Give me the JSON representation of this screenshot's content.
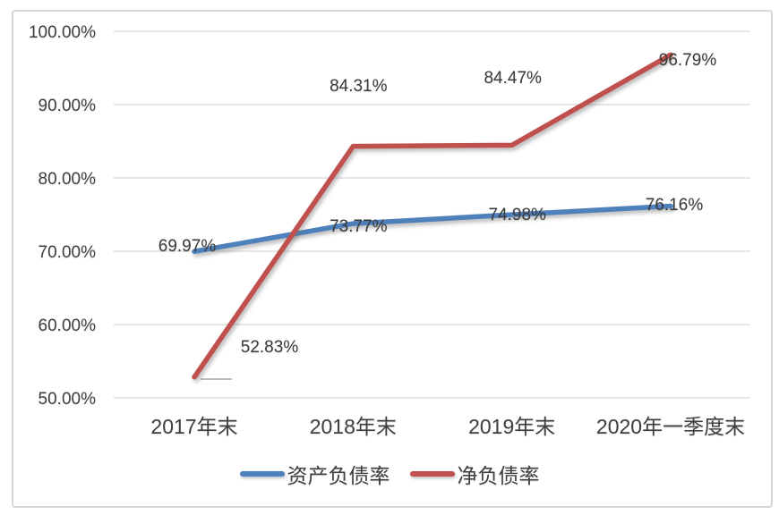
{
  "chart_data": {
    "type": "line",
    "title": "",
    "categories": [
      "2017年末",
      "2018年末",
      "2019年末",
      "2020年一季度末"
    ],
    "series": [
      {
        "name": "资产负债率",
        "color": "#4E80BC",
        "values": [
          69.97,
          73.77,
          74.98,
          76.16
        ],
        "data_labels": [
          "69.97%",
          "73.77%",
          "74.98%",
          "76.16%"
        ]
      },
      {
        "name": "净负债率",
        "color": "#C0504D",
        "values": [
          52.83,
          84.31,
          84.47,
          96.79
        ],
        "data_labels": [
          "52.83%",
          "84.31%",
          "84.47%",
          "96.79%"
        ]
      }
    ],
    "y_axis": {
      "min": 50,
      "max": 100,
      "step": 10,
      "tick_labels": [
        "50.00%",
        "60.00%",
        "70.00%",
        "80.00%",
        "90.00%",
        "100.00%"
      ]
    },
    "x_axis": {
      "tick_labels": [
        "2017年末",
        "2018年末",
        "2019年末",
        "2020年一季度末"
      ]
    },
    "grid": true,
    "legend": {
      "position": "bottom",
      "entries": [
        "资产负债率",
        "净负债率"
      ]
    },
    "colors": {
      "grid": "#D8D8D8",
      "axis_text": "#3F3F3F",
      "frame_border": "#D7D7D7",
      "leader_line": "#A6A6A6"
    }
  }
}
